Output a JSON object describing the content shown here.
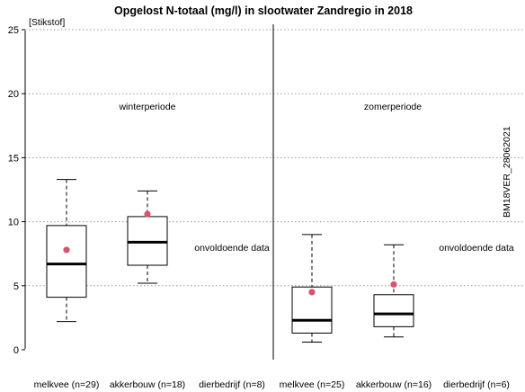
{
  "chart_data": {
    "type": "boxplot",
    "title": "Opgelost N-totaal (mg/l) in slootwater Zandregio in 2018",
    "ylabel": "[Stikstof]",
    "ylim": [
      -1,
      25.5
    ],
    "yticks": [
      0,
      5,
      10,
      15,
      20,
      25
    ],
    "grid": "horizontal-dotted",
    "vertical_label": "BM18VER_28062021",
    "panels": [
      {
        "label": "winterperiode",
        "groups": [
          {
            "name": "melkvee (n=29)",
            "min": 2.2,
            "q1": 4.1,
            "median": 6.7,
            "q3": 9.7,
            "max": 13.3,
            "mean": 7.8
          },
          {
            "name": "akkerbouw (n=18)",
            "min": 5.2,
            "q1": 6.6,
            "median": 8.4,
            "q3": 10.4,
            "max": 12.4,
            "mean": 10.6
          },
          {
            "name": "dierbedrijf (n=8)",
            "note": "onvoldoende data"
          }
        ]
      },
      {
        "label": "zomerperiode",
        "groups": [
          {
            "name": "melkvee (n=25)",
            "min": 0.6,
            "q1": 1.3,
            "median": 2.3,
            "q3": 4.9,
            "max": 9.0,
            "mean": 4.5
          },
          {
            "name": "akkerbouw (n=16)",
            "min": 1.0,
            "q1": 1.8,
            "median": 2.8,
            "q3": 4.3,
            "max": 8.2,
            "mean": 5.1
          },
          {
            "name": "dierbedrijf (n=6)",
            "note": "onvoldoende data"
          }
        ]
      }
    ],
    "colors": {
      "mean_marker": "#d6546e",
      "box_stroke": "#000000",
      "grid": "#9a9a9a"
    }
  }
}
